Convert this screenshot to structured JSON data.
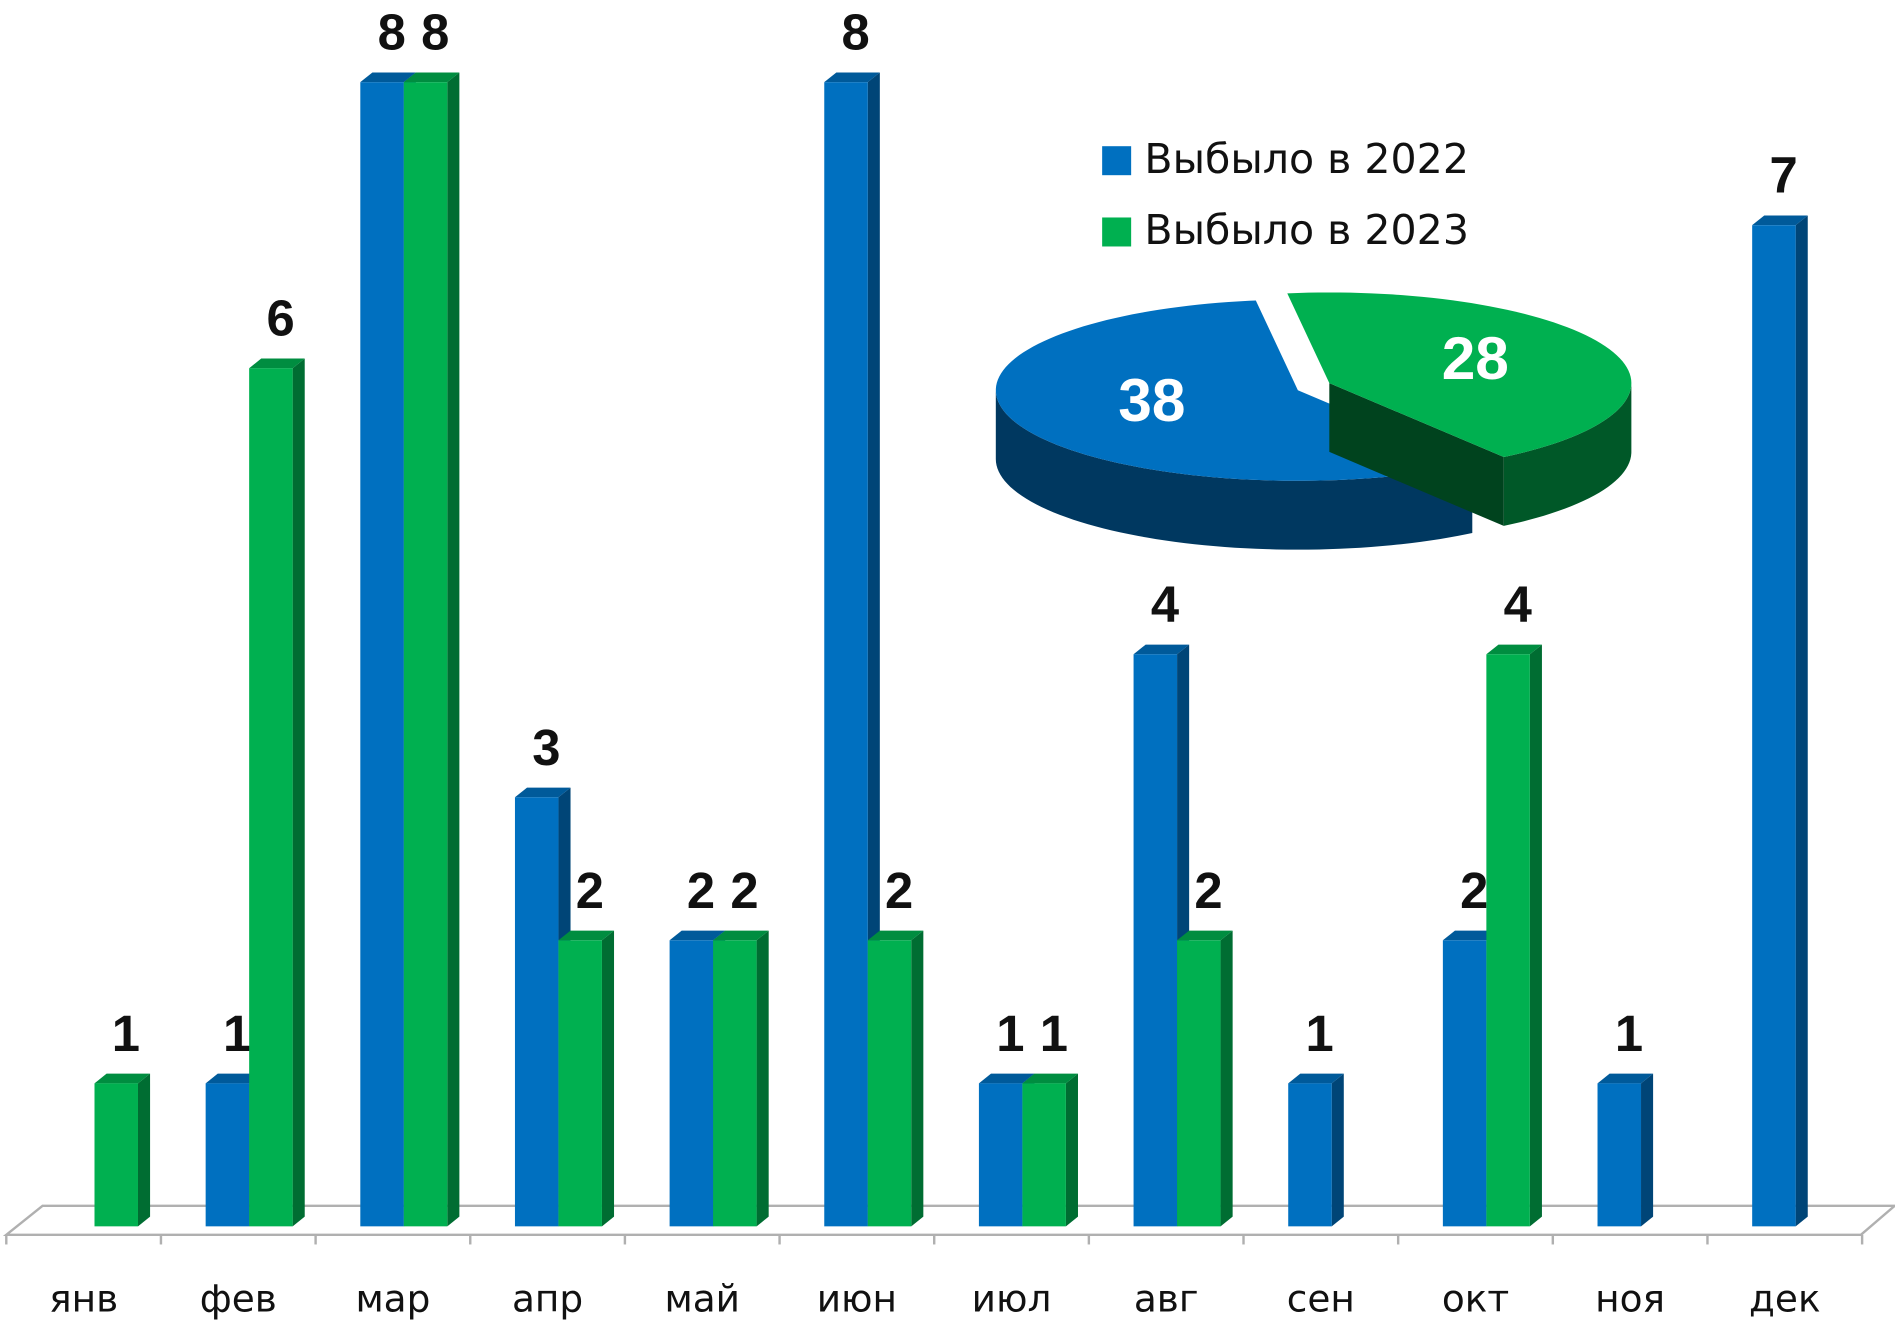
{
  "chart_data": [
    {
      "type": "bar",
      "categories": [
        "янв",
        "фев",
        "мар",
        "апр",
        "май",
        "июн",
        "июл",
        "авг",
        "сен",
        "окт",
        "ноя",
        "дек"
      ],
      "series": [
        {
          "name": "Выбыло в 2022",
          "color": "#0070c0",
          "values": [
            null,
            1,
            8,
            3,
            2,
            8,
            1,
            4,
            1,
            2,
            1,
            7
          ]
        },
        {
          "name": "Выбыло в 2023",
          "color": "#00b050",
          "values": [
            1,
            6,
            8,
            2,
            2,
            2,
            1,
            2,
            null,
            4,
            null,
            null
          ]
        }
      ],
      "ylim": [
        0,
        8
      ]
    },
    {
      "type": "pie",
      "values": [
        38,
        28
      ],
      "colors": [
        "#0070c0",
        "#00b050"
      ]
    }
  ]
}
